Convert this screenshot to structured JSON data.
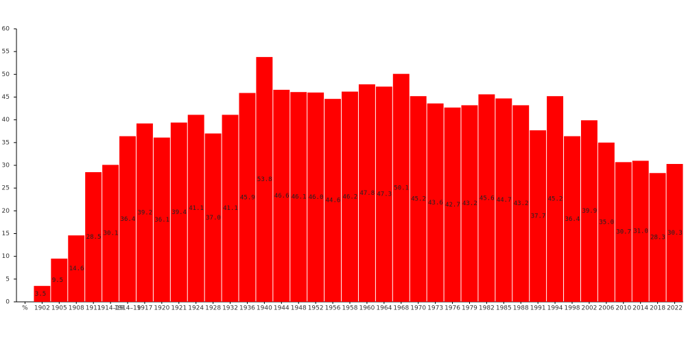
{
  "chart_data": {
    "type": "bar",
    "categories": [
      "%",
      "1902",
      "1905",
      "1908",
      "1911",
      "1914–19",
      "1914–19",
      "1917",
      "1920",
      "1921",
      "1924",
      "1928",
      "1932",
      "1936",
      "1940",
      "1944",
      "1948",
      "1952",
      "1956",
      "1958",
      "1960",
      "1964",
      "1968",
      "1970",
      "1973",
      "1976",
      "1979",
      "1982",
      "1985",
      "1988",
      "1991",
      "1994",
      "1998",
      "2002",
      "2006",
      "2010",
      "2014",
      "2018",
      "2022"
    ],
    "values": [
      null,
      3.5,
      9.5,
      14.6,
      28.5,
      30.1,
      36.4,
      39.2,
      36.1,
      39.4,
      41.1,
      37.0,
      41.1,
      45.9,
      53.8,
      46.6,
      46.1,
      46.0,
      44.6,
      46.2,
      47.8,
      47.3,
      50.1,
      45.2,
      43.6,
      42.7,
      43.2,
      45.6,
      44.7,
      43.2,
      37.7,
      45.2,
      36.4,
      39.9,
      35.0,
      30.7,
      31.0,
      28.3,
      30.3
    ],
    "value_labels": [
      null,
      "3.5",
      "9.5",
      "14.6",
      "28.5",
      "30.1",
      "36.4",
      "39.2",
      "36.1",
      "39.4",
      "41.1",
      "37.0",
      "41.1",
      "45.9",
      "53.8",
      "46.6",
      "46.1",
      "46.0",
      "44.6",
      "46.2",
      "47.8",
      "47.3",
      "50.1",
      "45.2",
      "43.6",
      "42.7",
      "43.2",
      "45.6",
      "44.7",
      "43.2",
      "37.7",
      "45.2",
      "36.4",
      "39.9",
      "35.0",
      "30.7",
      "31.0",
      "28.3",
      "30.3"
    ],
    "color": "#ff0000",
    "ylim": [
      0,
      60
    ],
    "yticks": [
      0,
      5,
      10,
      15,
      20,
      25,
      30,
      35,
      40,
      45,
      50,
      55,
      60
    ]
  }
}
